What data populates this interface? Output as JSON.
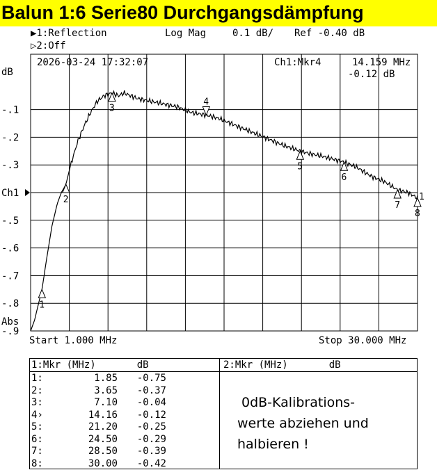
{
  "banner": {
    "title": "Balun 1:6  Serie80  Durchgangsdämpfung"
  },
  "header": {
    "ch1_label": "▶1:Reflection",
    "ch1_format": "Log Mag",
    "ch1_scale": "0.1 dB/",
    "ch1_ref": "Ref  -0.40 dB",
    "ch2_label": "▷2:Off"
  },
  "chart_data": {
    "type": "line",
    "timestamp": "2026-03-24 17:32:07",
    "active_marker_label": "Ch1:Mkr4",
    "active_marker_freq": "14.159 MHz",
    "active_marker_value": "-0.12 dB",
    "ylabel": "dB",
    "ylabel_bottom": "Abs",
    "ref_label": "Ch1",
    "start_label": "Start 1.000 MHz",
    "stop_label": "Stop 30.000 MHz",
    "xlim": [
      1.0,
      30.0
    ],
    "ylim": [
      -0.9,
      0.1
    ],
    "y_ticks": [
      -0.1,
      -0.2,
      -0.3,
      -0.4,
      -0.5,
      -0.6,
      -0.7,
      -0.8,
      -0.9
    ],
    "y_tick_labels": [
      "-.1",
      "-.2",
      "-.3",
      "Ch1",
      "-.5",
      "-.6",
      "-.7",
      "-.8",
      "-.9"
    ],
    "grid": true,
    "trace_color": "#000000",
    "series": [
      {
        "x": [
          1.0,
          1.3,
          1.6,
          1.85,
          2.2,
          2.6,
          3.0,
          3.3,
          3.65,
          4.0,
          4.5,
          5.0,
          5.5,
          6.0,
          6.5,
          7.1,
          7.6,
          8.0,
          9.0,
          10.0,
          11.0,
          12.0,
          13.0,
          14.16,
          15.0,
          16.0,
          17.0,
          18.0,
          19.0,
          20.0,
          21.2,
          22.0,
          23.0,
          24.5,
          25.5,
          26.5,
          27.5,
          28.5,
          29.3,
          30.0
        ],
        "y": [
          -0.9,
          -0.86,
          -0.8,
          -0.75,
          -0.64,
          -0.52,
          -0.44,
          -0.4,
          -0.37,
          -0.3,
          -0.22,
          -0.16,
          -0.11,
          -0.07,
          -0.05,
          -0.04,
          -0.05,
          -0.04,
          -0.06,
          -0.07,
          -0.08,
          -0.09,
          -0.11,
          -0.12,
          -0.13,
          -0.15,
          -0.17,
          -0.19,
          -0.21,
          -0.23,
          -0.25,
          -0.26,
          -0.27,
          -0.29,
          -0.31,
          -0.34,
          -0.36,
          -0.39,
          -0.4,
          -0.42
        ]
      }
    ],
    "markers": [
      {
        "label": "1",
        "x": 1.85,
        "y": -0.75,
        "dir": "up"
      },
      {
        "label": "2",
        "x": 3.65,
        "y": -0.37,
        "dir": "up"
      },
      {
        "label": "3",
        "x": 7.1,
        "y": -0.04,
        "dir": "up"
      },
      {
        "label": "4",
        "x": 14.16,
        "y": -0.12,
        "dir": "down"
      },
      {
        "label": "5",
        "x": 21.2,
        "y": -0.25,
        "dir": "up"
      },
      {
        "label": "6",
        "x": 24.5,
        "y": -0.29,
        "dir": "up"
      },
      {
        "label": "7",
        "x": 28.5,
        "y": -0.39,
        "dir": "up"
      },
      {
        "label": "8",
        "x": 30.0,
        "y": -0.42,
        "dir": "up"
      }
    ],
    "ref_marker_label": "1"
  },
  "marker_table": {
    "left_header": "1:Mkr (MHz)       dB",
    "right_header": "2:Mkr (MHz)       dB",
    "rows": [
      {
        "id": "1:",
        "freq": "1.85",
        "db": "-0.75"
      },
      {
        "id": "2:",
        "freq": "3.65",
        "db": "-0.37"
      },
      {
        "id": "3:",
        "freq": "7.10",
        "db": "-0.04"
      },
      {
        "id": "4›",
        "freq": "14.16",
        "db": "-0.12"
      },
      {
        "id": "5:",
        "freq": "21.20",
        "db": "-0.25"
      },
      {
        "id": "6:",
        "freq": "24.50",
        "db": "-0.29"
      },
      {
        "id": "7:",
        "freq": "28.50",
        "db": "-0.39"
      },
      {
        "id": "8:",
        "freq": "30.00",
        "db": "-0.42"
      }
    ]
  },
  "note": {
    "line1": "0dB-Kalibrations-",
    "line2": "werte abziehen und",
    "line3": "halbieren !"
  }
}
